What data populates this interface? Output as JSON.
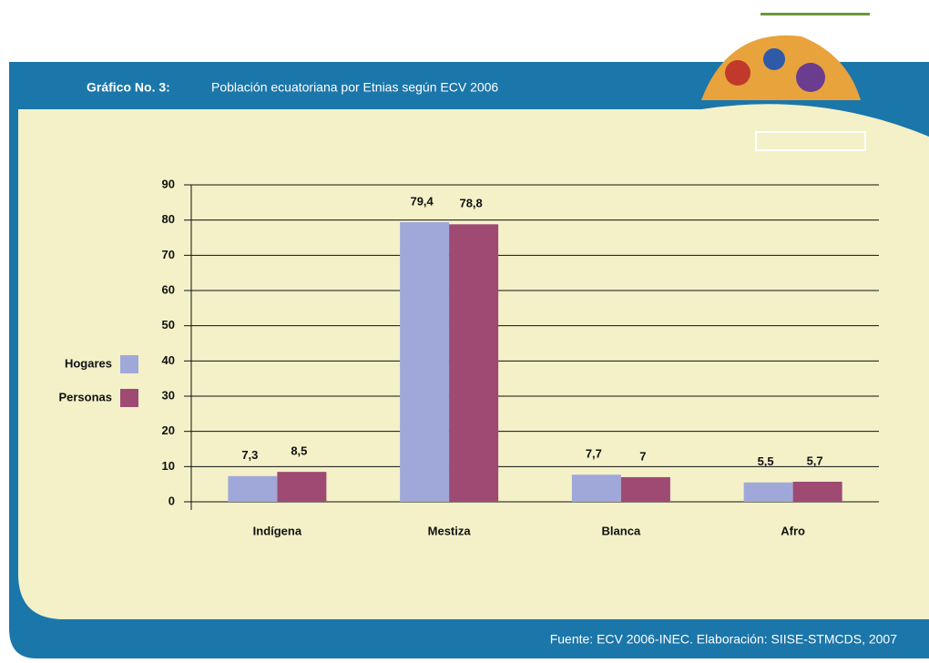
{
  "chart_data": {
    "type": "bar",
    "title_prefix": "Gráfico No. 3:",
    "title": "Población ecuatoriana por Etnias según ECV 2006",
    "source": "Fuente: ECV 2006-INEC. Elaboración: SIISE-STMCDS, 2007",
    "categories": [
      "Indígena",
      "Mestiza",
      "Blanca",
      "Afro"
    ],
    "series": [
      {
        "name": "Hogares",
        "color": "#a0a8d9",
        "values": [
          7.3,
          79.4,
          7.7,
          5.5
        ],
        "value_labels": [
          "7,3",
          "79,4",
          "7,7",
          "5,5"
        ]
      },
      {
        "name": "Personas",
        "color": "#9e4a73",
        "values": [
          8.5,
          78.8,
          7,
          5.7
        ],
        "value_labels": [
          "8,5",
          "78,8",
          "7",
          "5,7"
        ]
      }
    ],
    "ylim": [
      0,
      90
    ],
    "yticks": [
      0,
      10,
      20,
      30,
      40,
      50,
      60,
      70,
      80,
      90
    ],
    "grid": true,
    "legend": "left"
  }
}
